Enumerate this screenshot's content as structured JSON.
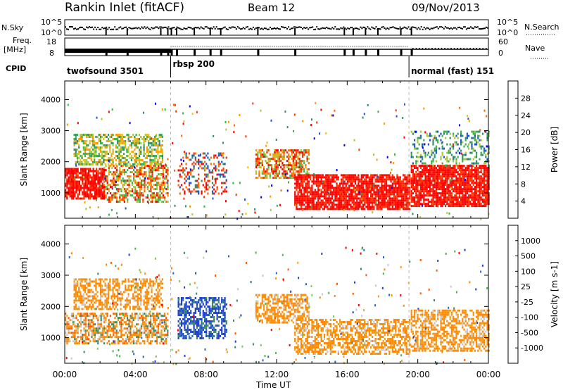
{
  "header": {
    "station": "Rankin Inlet (fitACF)",
    "beam": "Beam 12",
    "date": "09/Nov/2013"
  },
  "top_panels": {
    "nsky_label": "N.Sky",
    "nsky_ticks": [
      "10^5",
      "10^0"
    ],
    "nsearch_label": "N.Search",
    "nsearch_ticks": [
      "10^5",
      "10^0"
    ],
    "freq_label_1": "Freq.",
    "freq_label_2": "[MHz]",
    "freq_ticks": [
      "18",
      "8"
    ],
    "nave_label": "Nave",
    "nave_ticks": [
      "60",
      "0"
    ],
    "cpid_label": "CPID",
    "cpid_segments": [
      {
        "label": "twofsound 3501",
        "start_h": 0,
        "end_h": 6.0
      },
      {
        "label": "rbsp 200",
        "start_h": 6.0,
        "end_h": 19.5
      },
      {
        "label": "normal (fast) 151",
        "start_h": 19.5,
        "end_h": 24
      }
    ]
  },
  "colors": {
    "power_scale": [
      "#0000ff",
      "#2356c8",
      "#2f8f6a",
      "#3cb34a",
      "#a6c83c",
      "#e8c21c",
      "#ff9900",
      "#ff6a00",
      "#ff3300",
      "#ff0000"
    ],
    "velocity_scale": [
      "#1f3fd6",
      "#2c67c0",
      "#3a8a5c",
      "#4fb24a",
      "#7cc95a",
      "#c8c8c8",
      "#f2a01a",
      "#ff8800",
      "#ff5a00",
      "#ff0000"
    ]
  },
  "chart_data": [
    {
      "type": "heatmap",
      "quantity": "Power",
      "xlabel": "Time UT",
      "ylabel": "Slant Range [km]",
      "x_ticks": [
        "00:00",
        "04:00",
        "08:00",
        "12:00",
        "16:00",
        "20:00",
        "00:00"
      ],
      "y_ticks": [
        1000,
        2000,
        3000,
        4000
      ],
      "xlim_hours": [
        0,
        24
      ],
      "ylim_km": [
        180,
        4600
      ],
      "colorbar_label": "Power [dB]",
      "colorbar_ticks": [
        "4",
        "8",
        "12",
        "16",
        "20",
        "24",
        "28"
      ],
      "regions": [
        {
          "t0": 0.0,
          "t1": 2.2,
          "r0": 800,
          "r1": 1800,
          "level": "high"
        },
        {
          "t0": 2.2,
          "t1": 5.8,
          "r0": 700,
          "r1": 1900,
          "level": "mixed"
        },
        {
          "t0": 0.5,
          "t1": 5.5,
          "r0": 1900,
          "r1": 2900,
          "level": "mid"
        },
        {
          "t0": 6.4,
          "t1": 9.2,
          "r0": 1000,
          "r1": 2300,
          "level": "streaks"
        },
        {
          "t0": 10.8,
          "t1": 13.8,
          "r0": 1500,
          "r1": 2400,
          "level": "mixed"
        },
        {
          "t0": 13.0,
          "t1": 19.5,
          "r0": 500,
          "r1": 1600,
          "level": "high"
        },
        {
          "t0": 19.6,
          "t1": 24.0,
          "r0": 600,
          "r1": 1900,
          "level": "high"
        },
        {
          "t0": 19.6,
          "t1": 24.0,
          "r0": 1900,
          "r1": 3000,
          "level": "low"
        }
      ]
    },
    {
      "type": "heatmap",
      "quantity": "Velocity",
      "xlabel": "Time UT",
      "ylabel": "Slant Range [km]",
      "x_ticks": [
        "00:00",
        "04:00",
        "08:00",
        "12:00",
        "16:00",
        "20:00",
        "00:00"
      ],
      "y_ticks": [
        1000,
        2000,
        3000,
        4000
      ],
      "xlim_hours": [
        0,
        24
      ],
      "ylim_km": [
        180,
        4600
      ],
      "colorbar_label": "Velocity [m s-1]",
      "colorbar_ticks": [
        "1000",
        "500",
        "100",
        "25",
        "-25",
        "-100",
        "-500",
        "-1000"
      ],
      "regions": [
        {
          "t0": 0.0,
          "t1": 5.8,
          "r0": 800,
          "r1": 1800,
          "level": "mixed"
        },
        {
          "t0": 0.5,
          "t1": 5.5,
          "r0": 1900,
          "r1": 2900,
          "level": "orange"
        },
        {
          "t0": 6.4,
          "t1": 9.2,
          "r0": 1000,
          "r1": 2300,
          "level": "blue"
        },
        {
          "t0": 10.8,
          "t1": 13.8,
          "r0": 1500,
          "r1": 2400,
          "level": "orange"
        },
        {
          "t0": 13.0,
          "t1": 19.5,
          "r0": 500,
          "r1": 1600,
          "level": "orange"
        },
        {
          "t0": 19.6,
          "t1": 24.0,
          "r0": 600,
          "r1": 1900,
          "level": "orange"
        }
      ]
    }
  ]
}
